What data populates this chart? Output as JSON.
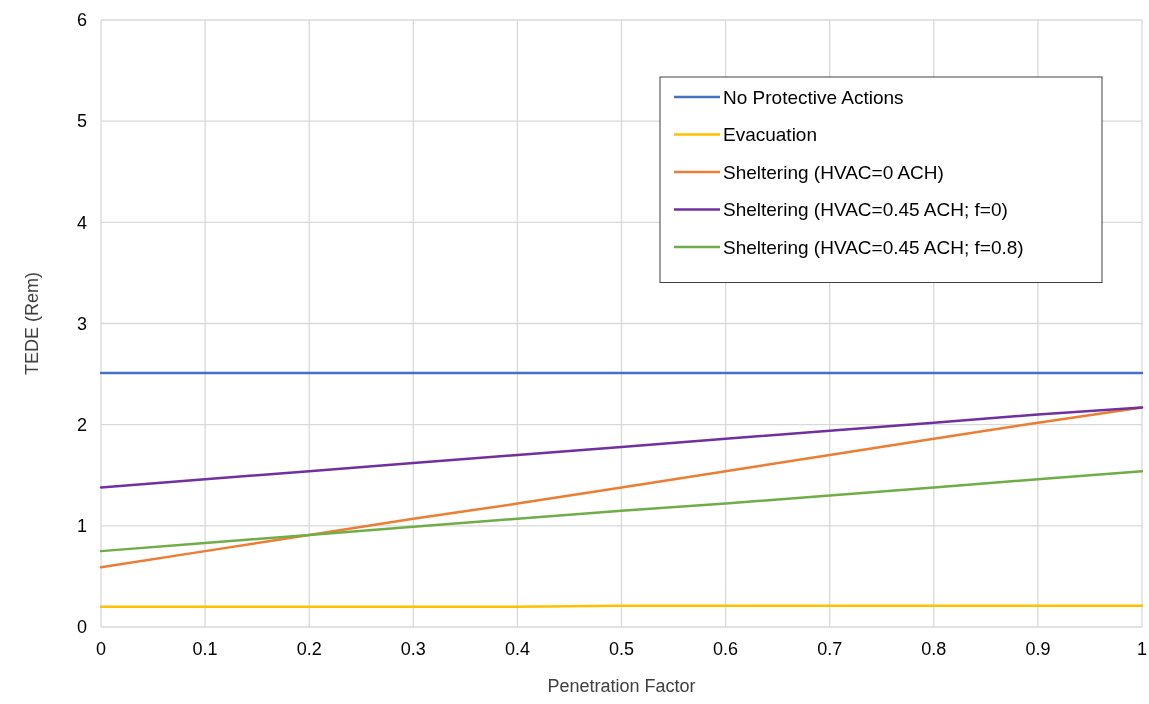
{
  "chart_data": {
    "type": "line",
    "xlabel": "Penetration Factor",
    "ylabel": "TEDE (Rem)",
    "x": [
      0,
      0.1,
      0.2,
      0.3,
      0.4,
      0.5,
      0.6,
      0.7,
      0.8,
      0.9,
      1
    ],
    "series": [
      {
        "name": "No Protective Actions",
        "color": "#4472c4",
        "values": [
          2.51,
          2.51,
          2.51,
          2.51,
          2.51,
          2.51,
          2.51,
          2.51,
          2.51,
          2.51,
          2.51
        ]
      },
      {
        "name": "Evacuation",
        "color": "#ffc000",
        "values": [
          0.2,
          0.2,
          0.2,
          0.2,
          0.2,
          0.21,
          0.21,
          0.21,
          0.21,
          0.21,
          0.21
        ]
      },
      {
        "name": "Sheltering (HVAC=0 ACH)",
        "color": "#ed7d31",
        "values": [
          0.59,
          0.75,
          0.91,
          1.07,
          1.22,
          1.38,
          1.54,
          1.7,
          1.86,
          2.02,
          2.17
        ]
      },
      {
        "name": "Sheltering (HVAC=0.45 ACH; f=0)",
        "color": "#7030a0",
        "values": [
          1.38,
          1.46,
          1.54,
          1.62,
          1.7,
          1.78,
          1.86,
          1.94,
          2.02,
          2.1,
          2.17
        ]
      },
      {
        "name": "Sheltering (HVAC=0.45 ACH; f=0.8)",
        "color": "#70ad47",
        "values": [
          0.75,
          0.83,
          0.91,
          0.99,
          1.07,
          1.15,
          1.22,
          1.3,
          1.38,
          1.46,
          1.54
        ]
      }
    ],
    "xlim": [
      0,
      1
    ],
    "xticks": [
      0,
      0.1,
      0.2,
      0.3,
      0.4,
      0.5,
      0.6,
      0.7,
      0.8,
      0.9,
      1
    ],
    "ylim": [
      0,
      6
    ],
    "yticks": [
      0,
      1,
      2,
      3,
      4,
      5,
      6
    ],
    "grid": true,
    "legend": "top right",
    "marker": "none",
    "line_style": "solid"
  }
}
